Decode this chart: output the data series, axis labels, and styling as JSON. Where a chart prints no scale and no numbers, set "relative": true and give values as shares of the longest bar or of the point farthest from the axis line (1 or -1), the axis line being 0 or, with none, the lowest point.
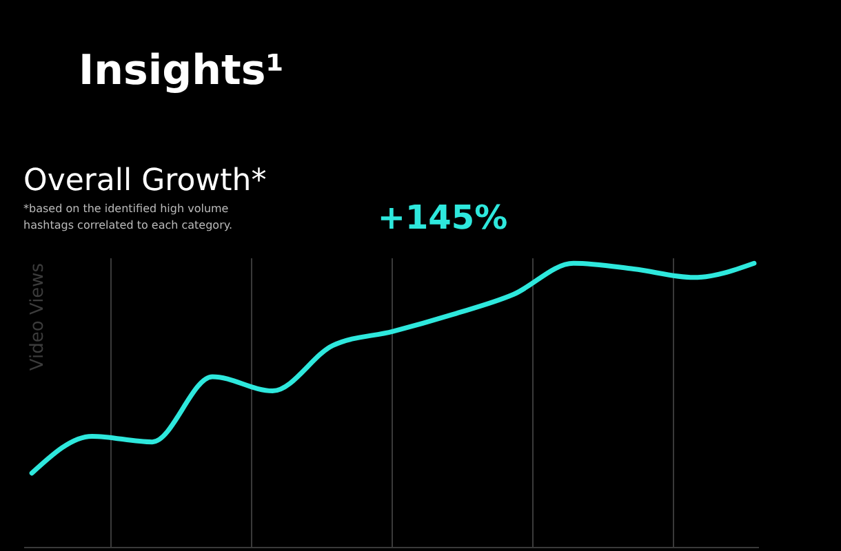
{
  "chart_data": {
    "type": "line",
    "title": "Insights¹",
    "subtitle": "Overall Growth*",
    "ylabel": "Video Views",
    "annotations": [
      "*based on the identified high volume hashtags correlated to each category.",
      "+145%"
    ],
    "categories": [
      null,
      null,
      null,
      null,
      null,
      null,
      null,
      null,
      null,
      null,
      null,
      null,
      null
    ],
    "relative": true,
    "grid": "x",
    "marker": "none",
    "line_style": "solid",
    "series": [
      {
        "color": "#2ee8dd",
        "values": [
          0.26,
          0.39,
          0.37,
          0.6,
          0.55,
          0.71,
          0.76,
          0.82,
          0.89,
          1.0,
          0.98,
          0.95,
          1.0
        ]
      }
    ]
  }
}
